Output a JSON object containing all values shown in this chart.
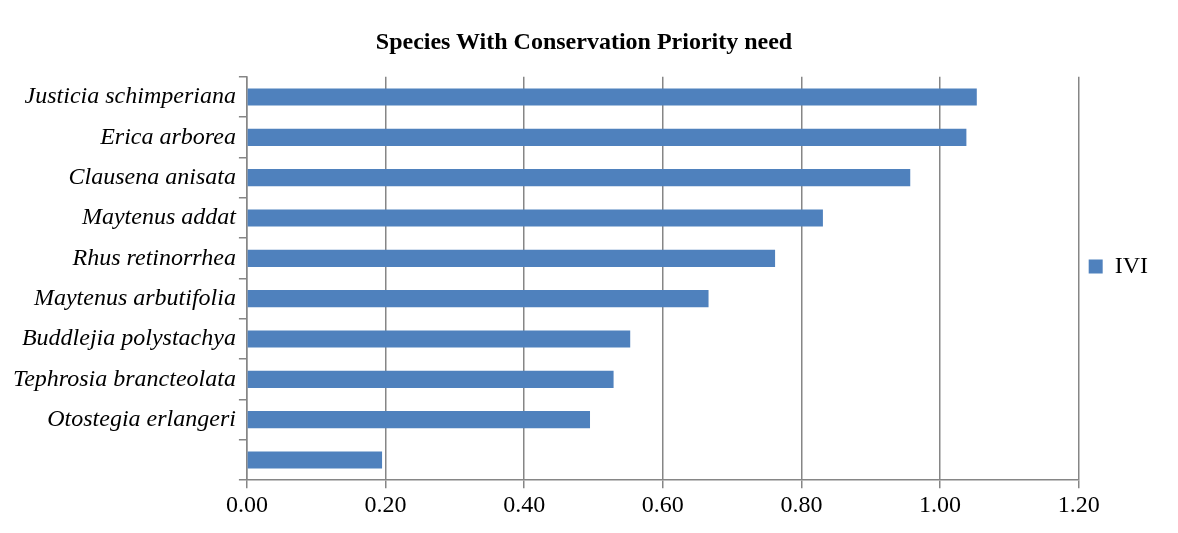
{
  "chart_data": {
    "type": "bar",
    "orientation": "horizontal",
    "title": "Species With Conservation Priority need",
    "categories": [
      "Justicia schimperiana",
      "Erica arborea",
      "Clausena anisata",
      "Maytenus addat",
      "Rhus retinorrhea",
      "Maytenus arbutifolia",
      "Buddlejia polystachya",
      "Tephrosia brancteolata",
      "Otostegia erlangeri",
      null
    ],
    "series": [
      {
        "name": "IVI",
        "color": "#4f81bd",
        "values": [
          1.053,
          1.038,
          0.957,
          0.831,
          0.762,
          0.666,
          0.553,
          0.529,
          0.495,
          0.195
        ]
      }
    ],
    "xlim": [
      0,
      1.2
    ],
    "xticks": [
      {
        "value": 0,
        "label": "0.00"
      },
      {
        "value": 0.2,
        "label": "0.20"
      },
      {
        "value": 0.4,
        "label": "0.40"
      },
      {
        "value": 0.6,
        "label": "0.60"
      },
      {
        "value": 0.8,
        "label": "0.80"
      },
      {
        "value": 1,
        "label": "1.00"
      },
      {
        "value": 1.2,
        "label": "1.20"
      }
    ],
    "grid": "x",
    "legend": "right"
  }
}
